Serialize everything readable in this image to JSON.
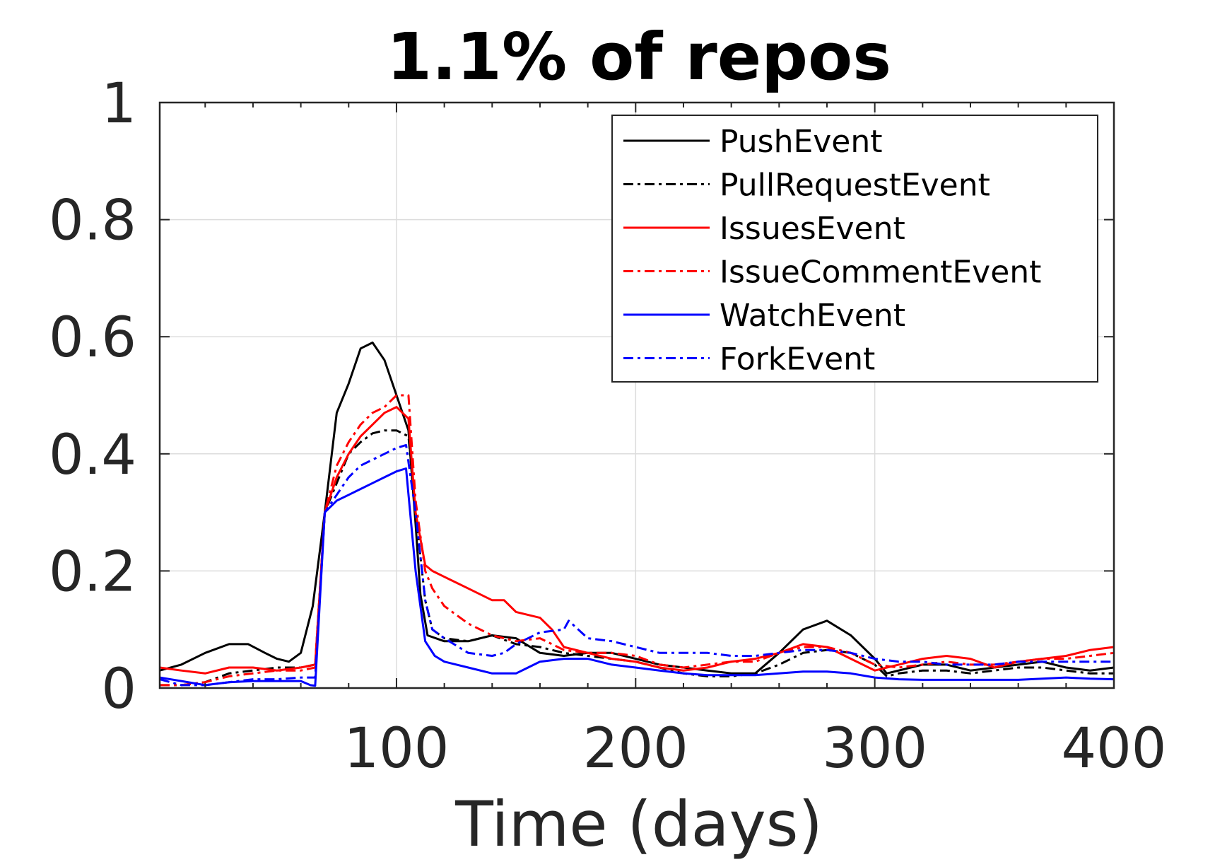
{
  "chart_data": {
    "type": "line",
    "title": "1.1% of repos",
    "xlabel": "Time (days)",
    "ylabel": "",
    "xlim": [
      1,
      400
    ],
    "ylim": [
      0,
      1
    ],
    "xticks": [
      100,
      200,
      300,
      400
    ],
    "yticks": [
      0,
      0.2,
      0.4,
      0.6,
      0.8,
      1
    ],
    "ytick_labels": [
      "0",
      "0.2",
      "0.4",
      "0.6",
      "0.8",
      "1"
    ],
    "grid": true,
    "legend_position": "top-right",
    "series": [
      {
        "name": "PushEvent",
        "color": "#000000",
        "dash": "solid",
        "points": [
          [
            1,
            0.03
          ],
          [
            10,
            0.04
          ],
          [
            20,
            0.06
          ],
          [
            30,
            0.075
          ],
          [
            38,
            0.075
          ],
          [
            45,
            0.06
          ],
          [
            50,
            0.05
          ],
          [
            55,
            0.045
          ],
          [
            60,
            0.06
          ],
          [
            65,
            0.14
          ],
          [
            70,
            0.3
          ],
          [
            75,
            0.47
          ],
          [
            80,
            0.52
          ],
          [
            85,
            0.58
          ],
          [
            90,
            0.59
          ],
          [
            95,
            0.56
          ],
          [
            100,
            0.5
          ],
          [
            105,
            0.44
          ],
          [
            108,
            0.28
          ],
          [
            110,
            0.16
          ],
          [
            113,
            0.09
          ],
          [
            120,
            0.08
          ],
          [
            130,
            0.08
          ],
          [
            140,
            0.09
          ],
          [
            150,
            0.085
          ],
          [
            160,
            0.06
          ],
          [
            170,
            0.055
          ],
          [
            180,
            0.06
          ],
          [
            190,
            0.06
          ],
          [
            200,
            0.05
          ],
          [
            210,
            0.04
          ],
          [
            220,
            0.035
          ],
          [
            230,
            0.03
          ],
          [
            240,
            0.025
          ],
          [
            250,
            0.025
          ],
          [
            260,
            0.06
          ],
          [
            270,
            0.1
          ],
          [
            280,
            0.115
          ],
          [
            290,
            0.09
          ],
          [
            300,
            0.05
          ],
          [
            305,
            0.025
          ],
          [
            310,
            0.03
          ],
          [
            320,
            0.04
          ],
          [
            330,
            0.04
          ],
          [
            340,
            0.03
          ],
          [
            350,
            0.035
          ],
          [
            360,
            0.04
          ],
          [
            370,
            0.045
          ],
          [
            380,
            0.035
          ],
          [
            390,
            0.03
          ],
          [
            400,
            0.035
          ]
        ]
      },
      {
        "name": "PullRequestEvent",
        "color": "#000000",
        "dash": "dashdot",
        "points": [
          [
            1,
            0.005
          ],
          [
            10,
            0.005
          ],
          [
            20,
            0.01
          ],
          [
            30,
            0.025
          ],
          [
            40,
            0.03
          ],
          [
            50,
            0.035
          ],
          [
            60,
            0.035
          ],
          [
            66,
            0.04
          ],
          [
            70,
            0.3
          ],
          [
            75,
            0.35
          ],
          [
            80,
            0.4
          ],
          [
            85,
            0.42
          ],
          [
            90,
            0.435
          ],
          [
            95,
            0.44
          ],
          [
            100,
            0.44
          ],
          [
            105,
            0.43
          ],
          [
            108,
            0.3
          ],
          [
            112,
            0.15
          ],
          [
            115,
            0.1
          ],
          [
            120,
            0.085
          ],
          [
            130,
            0.08
          ],
          [
            140,
            0.09
          ],
          [
            150,
            0.075
          ],
          [
            160,
            0.07
          ],
          [
            170,
            0.06
          ],
          [
            180,
            0.055
          ],
          [
            190,
            0.05
          ],
          [
            200,
            0.045
          ],
          [
            210,
            0.035
          ],
          [
            220,
            0.025
          ],
          [
            230,
            0.02
          ],
          [
            240,
            0.02
          ],
          [
            250,
            0.025
          ],
          [
            260,
            0.04
          ],
          [
            270,
            0.06
          ],
          [
            280,
            0.065
          ],
          [
            290,
            0.06
          ],
          [
            300,
            0.04
          ],
          [
            305,
            0.02
          ],
          [
            310,
            0.025
          ],
          [
            320,
            0.03
          ],
          [
            330,
            0.03
          ],
          [
            340,
            0.025
          ],
          [
            350,
            0.03
          ],
          [
            360,
            0.035
          ],
          [
            370,
            0.035
          ],
          [
            380,
            0.03
          ],
          [
            390,
            0.025
          ],
          [
            400,
            0.025
          ]
        ]
      },
      {
        "name": "IssuesEvent",
        "color": "#ff0000",
        "dash": "solid",
        "points": [
          [
            1,
            0.035
          ],
          [
            10,
            0.03
          ],
          [
            20,
            0.025
          ],
          [
            30,
            0.035
          ],
          [
            40,
            0.035
          ],
          [
            50,
            0.03
          ],
          [
            60,
            0.035
          ],
          [
            66,
            0.04
          ],
          [
            70,
            0.3
          ],
          [
            75,
            0.36
          ],
          [
            80,
            0.4
          ],
          [
            85,
            0.43
          ],
          [
            90,
            0.45
          ],
          [
            95,
            0.47
          ],
          [
            100,
            0.48
          ],
          [
            105,
            0.46
          ],
          [
            108,
            0.3
          ],
          [
            112,
            0.21
          ],
          [
            115,
            0.2
          ],
          [
            120,
            0.19
          ],
          [
            130,
            0.17
          ],
          [
            140,
            0.15
          ],
          [
            145,
            0.15
          ],
          [
            150,
            0.13
          ],
          [
            160,
            0.12
          ],
          [
            165,
            0.1
          ],
          [
            170,
            0.07
          ],
          [
            180,
            0.06
          ],
          [
            190,
            0.05
          ],
          [
            200,
            0.045
          ],
          [
            210,
            0.035
          ],
          [
            220,
            0.03
          ],
          [
            230,
            0.035
          ],
          [
            240,
            0.045
          ],
          [
            250,
            0.05
          ],
          [
            260,
            0.06
          ],
          [
            270,
            0.075
          ],
          [
            280,
            0.07
          ],
          [
            290,
            0.05
          ],
          [
            300,
            0.03
          ],
          [
            310,
            0.04
          ],
          [
            320,
            0.05
          ],
          [
            330,
            0.055
          ],
          [
            340,
            0.05
          ],
          [
            350,
            0.035
          ],
          [
            360,
            0.045
          ],
          [
            370,
            0.05
          ],
          [
            380,
            0.055
          ],
          [
            390,
            0.065
          ],
          [
            400,
            0.07
          ]
        ]
      },
      {
        "name": "IssueCommentEvent",
        "color": "#ff0000",
        "dash": "dashdot",
        "points": [
          [
            1,
            0.005
          ],
          [
            10,
            0.005
          ],
          [
            20,
            0.01
          ],
          [
            30,
            0.02
          ],
          [
            40,
            0.025
          ],
          [
            50,
            0.03
          ],
          [
            60,
            0.03
          ],
          [
            66,
            0.035
          ],
          [
            70,
            0.3
          ],
          [
            75,
            0.38
          ],
          [
            80,
            0.42
          ],
          [
            85,
            0.45
          ],
          [
            90,
            0.47
          ],
          [
            95,
            0.48
          ],
          [
            100,
            0.5
          ],
          [
            105,
            0.5
          ],
          [
            108,
            0.32
          ],
          [
            112,
            0.2
          ],
          [
            115,
            0.17
          ],
          [
            120,
            0.14
          ],
          [
            130,
            0.11
          ],
          [
            140,
            0.09
          ],
          [
            150,
            0.08
          ],
          [
            160,
            0.085
          ],
          [
            170,
            0.065
          ],
          [
            180,
            0.06
          ],
          [
            190,
            0.06
          ],
          [
            200,
            0.055
          ],
          [
            210,
            0.04
          ],
          [
            220,
            0.035
          ],
          [
            230,
            0.04
          ],
          [
            240,
            0.045
          ],
          [
            250,
            0.045
          ],
          [
            260,
            0.06
          ],
          [
            270,
            0.07
          ],
          [
            280,
            0.07
          ],
          [
            290,
            0.06
          ],
          [
            300,
            0.04
          ],
          [
            310,
            0.035
          ],
          [
            320,
            0.04
          ],
          [
            330,
            0.045
          ],
          [
            340,
            0.04
          ],
          [
            350,
            0.04
          ],
          [
            360,
            0.045
          ],
          [
            370,
            0.05
          ],
          [
            380,
            0.05
          ],
          [
            390,
            0.055
          ],
          [
            400,
            0.06
          ]
        ]
      },
      {
        "name": "WatchEvent",
        "color": "#0000ff",
        "dash": "solid",
        "points": [
          [
            1,
            0.018
          ],
          [
            10,
            0.012
          ],
          [
            20,
            0.005
          ],
          [
            30,
            0.01
          ],
          [
            40,
            0.012
          ],
          [
            50,
            0.012
          ],
          [
            60,
            0.012
          ],
          [
            64,
            0.005
          ],
          [
            66,
            0.004
          ],
          [
            70,
            0.3
          ],
          [
            75,
            0.32
          ],
          [
            80,
            0.33
          ],
          [
            85,
            0.34
          ],
          [
            90,
            0.35
          ],
          [
            95,
            0.36
          ],
          [
            100,
            0.37
          ],
          [
            104,
            0.375
          ],
          [
            108,
            0.2
          ],
          [
            112,
            0.08
          ],
          [
            116,
            0.055
          ],
          [
            120,
            0.045
          ],
          [
            130,
            0.035
          ],
          [
            140,
            0.025
          ],
          [
            150,
            0.025
          ],
          [
            155,
            0.035
          ],
          [
            160,
            0.045
          ],
          [
            170,
            0.05
          ],
          [
            180,
            0.05
          ],
          [
            190,
            0.04
          ],
          [
            200,
            0.035
          ],
          [
            210,
            0.03
          ],
          [
            220,
            0.025
          ],
          [
            230,
            0.022
          ],
          [
            240,
            0.022
          ],
          [
            250,
            0.022
          ],
          [
            260,
            0.025
          ],
          [
            270,
            0.028
          ],
          [
            280,
            0.028
          ],
          [
            290,
            0.025
          ],
          [
            300,
            0.018
          ],
          [
            310,
            0.015
          ],
          [
            320,
            0.014
          ],
          [
            330,
            0.014
          ],
          [
            340,
            0.014
          ],
          [
            350,
            0.014
          ],
          [
            360,
            0.014
          ],
          [
            370,
            0.016
          ],
          [
            380,
            0.018
          ],
          [
            390,
            0.016
          ],
          [
            400,
            0.015
          ]
        ]
      },
      {
        "name": "ForkEvent",
        "color": "#0000ff",
        "dash": "dashdot",
        "points": [
          [
            1,
            0.015
          ],
          [
            10,
            0.005
          ],
          [
            20,
            0.005
          ],
          [
            30,
            0.01
          ],
          [
            40,
            0.015
          ],
          [
            50,
            0.015
          ],
          [
            60,
            0.018
          ],
          [
            66,
            0.018
          ],
          [
            70,
            0.3
          ],
          [
            75,
            0.33
          ],
          [
            80,
            0.36
          ],
          [
            85,
            0.38
          ],
          [
            90,
            0.39
          ],
          [
            95,
            0.4
          ],
          [
            100,
            0.41
          ],
          [
            104,
            0.415
          ],
          [
            108,
            0.3
          ],
          [
            112,
            0.15
          ],
          [
            115,
            0.1
          ],
          [
            120,
            0.085
          ],
          [
            130,
            0.06
          ],
          [
            140,
            0.055
          ],
          [
            145,
            0.06
          ],
          [
            150,
            0.075
          ],
          [
            160,
            0.095
          ],
          [
            170,
            0.1
          ],
          [
            172,
            0.115
          ],
          [
            176,
            0.1
          ],
          [
            180,
            0.085
          ],
          [
            190,
            0.08
          ],
          [
            200,
            0.07
          ],
          [
            210,
            0.06
          ],
          [
            220,
            0.06
          ],
          [
            230,
            0.06
          ],
          [
            240,
            0.055
          ],
          [
            250,
            0.055
          ],
          [
            260,
            0.06
          ],
          [
            270,
            0.065
          ],
          [
            280,
            0.065
          ],
          [
            290,
            0.06
          ],
          [
            300,
            0.05
          ],
          [
            310,
            0.045
          ],
          [
            320,
            0.045
          ],
          [
            330,
            0.04
          ],
          [
            340,
            0.04
          ],
          [
            350,
            0.04
          ],
          [
            360,
            0.045
          ],
          [
            370,
            0.045
          ],
          [
            380,
            0.045
          ],
          [
            390,
            0.045
          ],
          [
            400,
            0.045
          ]
        ]
      }
    ]
  }
}
